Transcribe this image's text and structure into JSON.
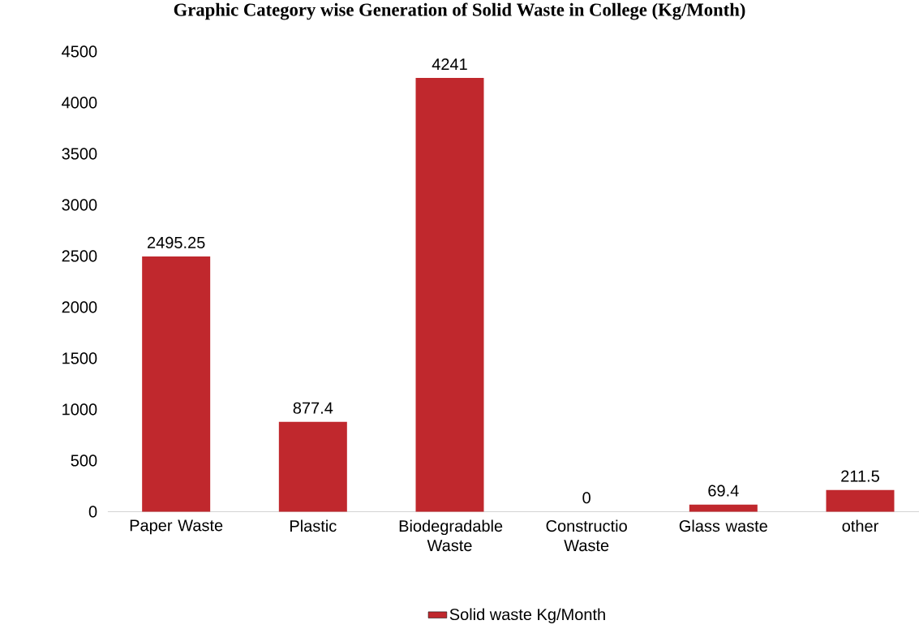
{
  "chart_data": {
    "type": "bar",
    "title": "Graphic Category wise Generation of Solid Waste in College (Kg/Month)",
    "categories": [
      "Paper Waste",
      "Plastic",
      "Biodegradable Waste",
      "Constructio Waste",
      "Glass waste",
      "other"
    ],
    "series": [
      {
        "name": "Solid waste Kg/Month",
        "color": "#c0282d",
        "values": [
          2495.25,
          877.4,
          4241,
          0,
          69.4,
          211.5
        ]
      }
    ],
    "ylim": [
      0,
      4500
    ],
    "yticks": [
      0,
      500,
      1000,
      1500,
      2000,
      2500,
      3000,
      3500,
      4000,
      4500
    ],
    "data_labels": true,
    "grid": false,
    "legend": "bottom"
  }
}
